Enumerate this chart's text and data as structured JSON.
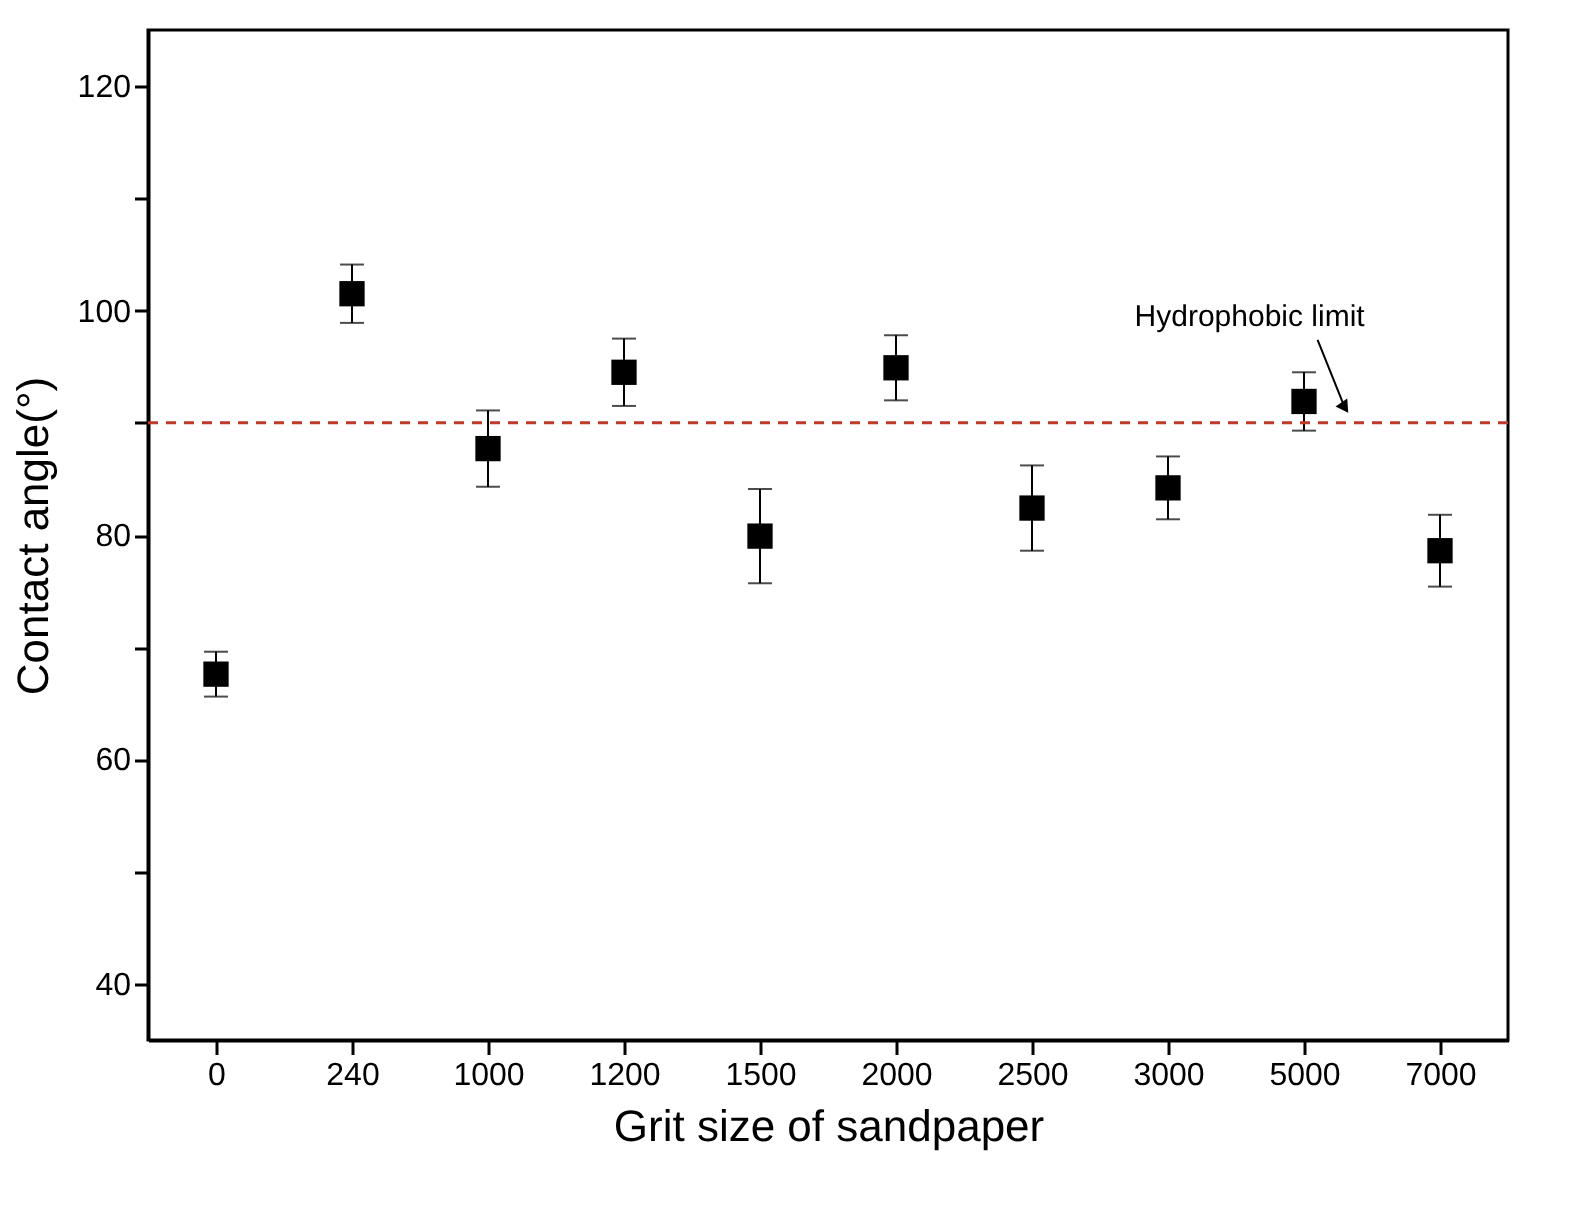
{
  "chart_data": {
    "type": "scatter",
    "xlabel": "Grit size of sandpaper",
    "ylabel": "Contact angle(°)",
    "categories": [
      "0",
      "240",
      "1000",
      "1200",
      "1500",
      "2000",
      "2500",
      "3000",
      "5000",
      "7000"
    ],
    "series": [
      {
        "color": "#000000",
        "values": [
          67.6,
          101.5,
          87.7,
          94.5,
          79.9,
          94.9,
          82.4,
          84.2,
          91.9,
          78.6
        ],
        "errors": [
          2.0,
          2.6,
          3.4,
          3.0,
          4.2,
          2.9,
          3.8,
          2.8,
          2.6,
          3.2
        ]
      }
    ],
    "ylim": [
      35,
      125
    ],
    "yticks": [
      40,
      {
        "value": 50,
        "label": null
      },
      60,
      {
        "value": 70,
        "label": null
      },
      80,
      {
        "value": 90,
        "label": null
      },
      100,
      {
        "value": 110,
        "label": null
      },
      120
    ],
    "ref_lines": [
      {
        "axis": "y",
        "value": 90,
        "label": "Hydrophobic limit",
        "color": "#c0392b",
        "line_style": "dashed"
      }
    ],
    "marker": "square",
    "grid": false
  }
}
